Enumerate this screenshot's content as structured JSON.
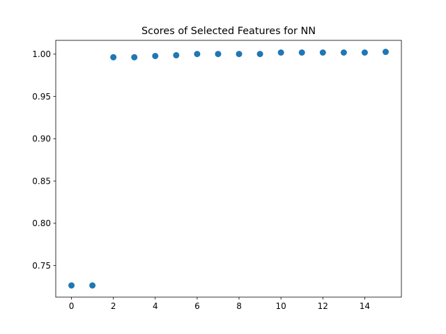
{
  "chart_data": {
    "type": "scatter",
    "title": "Scores of Selected Features for NN",
    "xlabel": "",
    "ylabel": "",
    "x": [
      0,
      1,
      2,
      3,
      4,
      5,
      6,
      7,
      8,
      9,
      10,
      11,
      12,
      13,
      14,
      15
    ],
    "y": [
      0.7265,
      0.7265,
      0.9963,
      0.9963,
      0.9978,
      0.9987,
      1.0002,
      1.0002,
      1.0002,
      1.0002,
      1.0019,
      1.0019,
      1.0019,
      1.0019,
      1.0019,
      1.0027
    ],
    "xlim": [
      -0.75,
      15.75
    ],
    "ylim": [
      0.7127,
      1.0163
    ],
    "xticks": [
      0,
      2,
      4,
      6,
      8,
      10,
      12,
      14
    ],
    "xtick_labels": [
      "0",
      "2",
      "4",
      "6",
      "8",
      "10",
      "12",
      "14"
    ],
    "yticks": [
      0.75,
      0.8,
      0.85,
      0.9,
      0.95,
      1.0
    ],
    "ytick_labels": [
      "0.75",
      "0.80",
      "0.85",
      "0.90",
      "0.95",
      "1.00"
    ],
    "grid": false,
    "legend": "none",
    "marker_color": "#1f77b4"
  }
}
